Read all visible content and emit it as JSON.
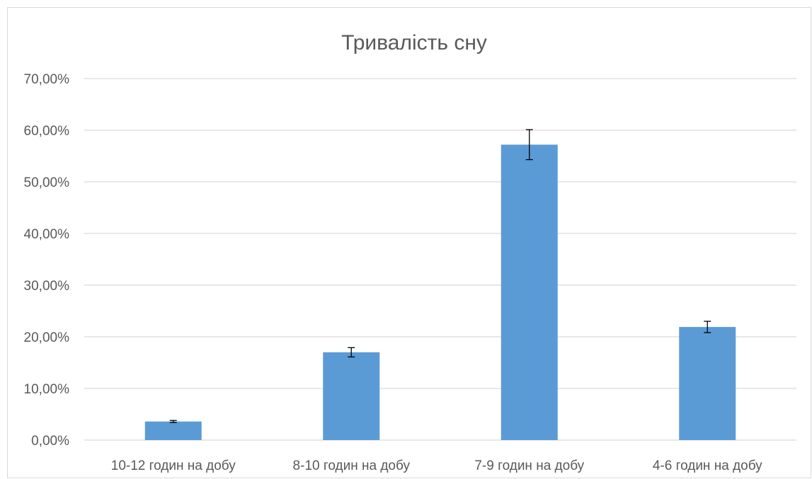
{
  "chart_data": {
    "type": "bar",
    "title": "Тривалість сну",
    "xlabel": "",
    "ylabel": "",
    "categories": [
      "10-12 годин на добу",
      "8-10 годин на добу",
      "7-9 годин на добу",
      "4-6 годин на добу"
    ],
    "values": [
      0.036,
      0.17,
      0.572,
      0.219
    ],
    "error_bars": [
      0.002,
      0.009,
      0.029,
      0.011
    ],
    "ylim": [
      0,
      0.7
    ],
    "ytick_values": [
      0,
      0.1,
      0.2,
      0.3,
      0.4,
      0.5,
      0.6,
      0.7
    ],
    "yticks": [
      "0,00%",
      "10,00%",
      "20,00%",
      "30,00%",
      "40,00%",
      "50,00%",
      "60,00%",
      "70,00%"
    ],
    "grid": true,
    "legend": "none",
    "colors": {
      "bar": "#5b9bd5",
      "grid": "#d9d9d9",
      "axis": "#d9d9d9",
      "text": "#595959",
      "error_bar": "#000000"
    }
  }
}
